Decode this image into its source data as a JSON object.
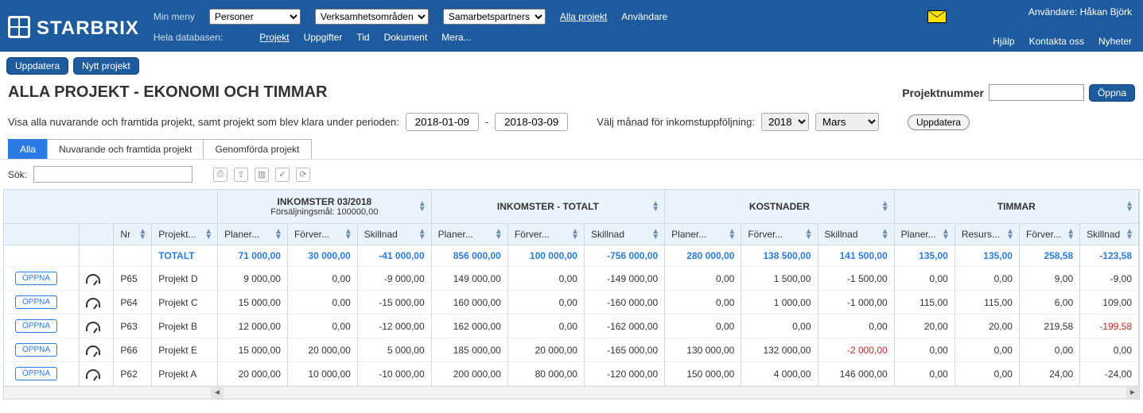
{
  "brand": "STARBRIX",
  "topnav": {
    "row1": {
      "label": "Min meny",
      "dropdowns": [
        {
          "name": "personer",
          "value": "Personer"
        },
        {
          "name": "verksamhet",
          "value": "Verksamhetsområden"
        },
        {
          "name": "samarbete",
          "value": "Samarbetspartners"
        }
      ],
      "links": [
        {
          "name": "alla-projekt",
          "label": "Alla projekt",
          "underline": true
        },
        {
          "name": "anvandare",
          "label": "Användare",
          "underline": false
        }
      ]
    },
    "row2": {
      "label": "Hela databasen:",
      "links": [
        {
          "name": "projekt",
          "label": "Projekt",
          "underline": true
        },
        {
          "name": "uppgifter",
          "label": "Uppgifter"
        },
        {
          "name": "tid",
          "label": "Tid"
        },
        {
          "name": "dokument",
          "label": "Dokument"
        },
        {
          "name": "mera",
          "label": "Mera..."
        }
      ]
    }
  },
  "userline": {
    "prefix": "Användare:",
    "name": "Håkan Björk"
  },
  "toplinks": [
    {
      "name": "hjalp",
      "label": "Hjälp"
    },
    {
      "name": "kontakta",
      "label": "Kontakta oss"
    },
    {
      "name": "nyheter",
      "label": "Nyheter"
    }
  ],
  "subbar": {
    "uppdatera": "Uppdatera",
    "nytt": "Nytt projekt"
  },
  "page_title": "ALLA PROJEKT - EKONOMI OCH TIMMAR",
  "projnr": {
    "label": "Projektnummer",
    "value": "",
    "oppna": "Öppna"
  },
  "filter": {
    "text": "Visa alla nuvarande och framtida projekt, samt projekt som blev klara under perioden:",
    "from": "2018-01-09",
    "dash": "-",
    "to": "2018-03-09",
    "monthlabel": "Välj månad för inkomstuppföljning:",
    "year": "2018",
    "month": "Mars",
    "uppdatera": "Uppdatera"
  },
  "tabs": [
    {
      "name": "alla",
      "label": "Alla",
      "active": true
    },
    {
      "name": "nuvarande",
      "label": "Nuvarande och framtida projekt",
      "active": false
    },
    {
      "name": "genomforda",
      "label": "Genomförda projekt",
      "active": false
    }
  ],
  "search": {
    "label": "Sök:",
    "value": ""
  },
  "table": {
    "groups": [
      {
        "key": "blank",
        "label": "",
        "span": 4
      },
      {
        "key": "ink_month",
        "label": "INKOMSTER 03/2018",
        "sub": "Försäljningsmål: 100000,00",
        "span": 3
      },
      {
        "key": "ink_tot",
        "label": "INKOMSTER - TOTALT",
        "span": 3
      },
      {
        "key": "kost",
        "label": "KOSTNADER",
        "span": 3
      },
      {
        "key": "tim",
        "label": "TIMMAR",
        "span": 4
      }
    ],
    "cols": [
      {
        "key": "open",
        "label": ""
      },
      {
        "key": "icon",
        "label": ""
      },
      {
        "key": "nr",
        "label": "Nr"
      },
      {
        "key": "proj",
        "label": "Projekt..."
      },
      {
        "key": "im_plan",
        "label": "Planer..."
      },
      {
        "key": "im_forv",
        "label": "Förver..."
      },
      {
        "key": "im_skill",
        "label": "Skillnad"
      },
      {
        "key": "it_plan",
        "label": "Planer..."
      },
      {
        "key": "it_forv",
        "label": "Förver..."
      },
      {
        "key": "it_skill",
        "label": "Skillnad"
      },
      {
        "key": "k_plan",
        "label": "Planer..."
      },
      {
        "key": "k_forv",
        "label": "Förver..."
      },
      {
        "key": "k_skill",
        "label": "Skillnad"
      },
      {
        "key": "t_plan",
        "label": "Planer..."
      },
      {
        "key": "t_res",
        "label": "Resurs..."
      },
      {
        "key": "t_forv",
        "label": "Förver..."
      },
      {
        "key": "t_skill",
        "label": "Skillnad"
      }
    ],
    "total": {
      "label": "TOTALT",
      "cells": [
        "71 000,00",
        "30 000,00",
        "-41 000,00",
        "856 000,00",
        "100 000,00",
        "-756 000,00",
        "280 000,00",
        "138 500,00",
        "141 500,00",
        "135,00",
        "135,00",
        "258,58",
        "-123,58"
      ]
    },
    "open_label": "ÖPPNA",
    "rows": [
      {
        "nr": "P65",
        "proj": "Projekt D",
        "cells": [
          "9 000,00",
          "0,00",
          "-9 000,00",
          "149 000,00",
          "0,00",
          "-149 000,00",
          "0,00",
          "1 500,00",
          "-1 500,00",
          "0,00",
          "0,00",
          "9,00",
          "-9,00"
        ],
        "neg": []
      },
      {
        "nr": "P64",
        "proj": "Projekt C",
        "cells": [
          "15 000,00",
          "0,00",
          "-15 000,00",
          "160 000,00",
          "0,00",
          "-160 000,00",
          "0,00",
          "1 000,00",
          "-1 000,00",
          "115,00",
          "115,00",
          "6,00",
          "109,00"
        ],
        "neg": []
      },
      {
        "nr": "P63",
        "proj": "Projekt B",
        "cells": [
          "12 000,00",
          "0,00",
          "-12 000,00",
          "162 000,00",
          "0,00",
          "-162 000,00",
          "0,00",
          "0,00",
          "0,00",
          "20,00",
          "20,00",
          "219,58",
          "-199,58"
        ],
        "neg": [
          12
        ]
      },
      {
        "nr": "P66",
        "proj": "Projekt E",
        "cells": [
          "15 000,00",
          "20 000,00",
          "5 000,00",
          "185 000,00",
          "20 000,00",
          "-165 000,00",
          "130 000,00",
          "132 000,00",
          "-2 000,00",
          "0,00",
          "0,00",
          "0,00",
          "0,00"
        ],
        "neg": [
          8
        ]
      },
      {
        "nr": "P62",
        "proj": "Projekt A",
        "cells": [
          "20 000,00",
          "10 000,00",
          "-10 000,00",
          "200 000,00",
          "80 000,00",
          "-120 000,00",
          "150 000,00",
          "4 000,00",
          "146 000,00",
          "0,00",
          "0,00",
          "24,00",
          "-24,00"
        ],
        "neg": []
      }
    ]
  }
}
